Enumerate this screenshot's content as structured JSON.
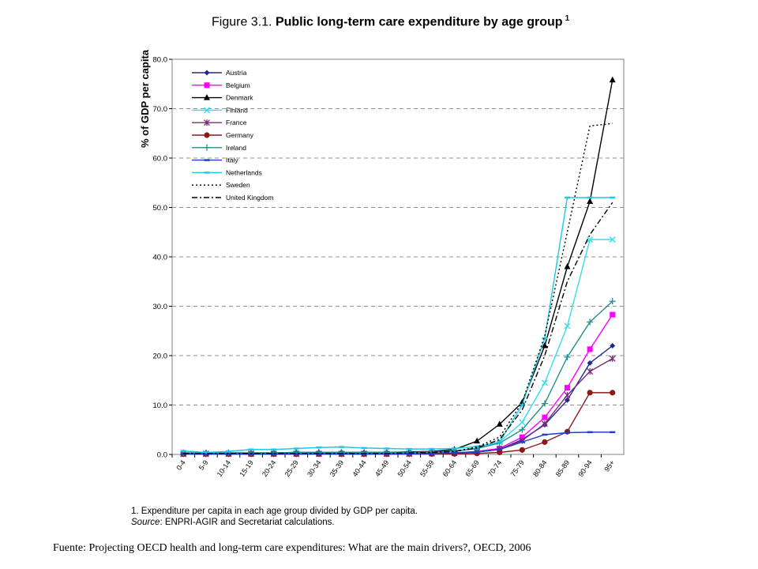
{
  "figure": {
    "number": "Figure 3.1.",
    "title": "Public long-term care expenditure by age group",
    "superscript": "1"
  },
  "footnote": {
    "line1": "1. Expenditure per capita in each age group divided by GDP per capita.",
    "source_label": "Source",
    "source_text": ": ENPRI-AGIR and Secretariat calculations."
  },
  "fuente": "Fuente: Projecting OECD health and long-term care expenditures: What are the main drivers?, OECD, 2006",
  "chart_data": {
    "type": "line",
    "title": "Public long-term care expenditure by age group",
    "xlabel": "",
    "ylabel": "% of GDP per capita",
    "ylim": [
      0,
      80
    ],
    "yticks": [
      "0.0",
      "10.0",
      "20.0",
      "30.0",
      "40.0",
      "50.0",
      "60.0",
      "70.0",
      "80.0"
    ],
    "grid": "horizontal dashed",
    "legend_position": "top-left",
    "categories": [
      "0-4",
      "5-9",
      "10-14",
      "15-19",
      "20-24",
      "25-29",
      "30-34",
      "35-39",
      "40-44",
      "45-49",
      "50-54",
      "55-59",
      "60-64",
      "65-69",
      "70-74",
      "75-79",
      "80-84",
      "85-89",
      "90-94",
      "95+"
    ],
    "series": [
      {
        "name": "Austria",
        "color": "#1f2a8c",
        "marker": "diamond",
        "dash": "",
        "values": [
          0.2,
          0.2,
          0.2,
          0.2,
          0.2,
          0.2,
          0.2,
          0.2,
          0.2,
          0.2,
          0.2,
          0.2,
          0.3,
          0.5,
          1.0,
          3.0,
          6.0,
          11.0,
          18.5,
          22.0
        ]
      },
      {
        "name": "Belgium",
        "color": "#ff00ff",
        "marker": "square",
        "dash": "",
        "values": [
          0.1,
          0.1,
          0.1,
          0.1,
          0.1,
          0.1,
          0.1,
          0.1,
          0.1,
          0.1,
          0.2,
          0.2,
          0.3,
          0.6,
          1.2,
          3.5,
          7.5,
          13.5,
          21.3,
          28.3
        ]
      },
      {
        "name": "Denmark",
        "color": "#000000",
        "marker": "triangle",
        "dash": "",
        "values": [
          0.3,
          0.3,
          0.3,
          0.3,
          0.3,
          0.4,
          0.4,
          0.4,
          0.4,
          0.4,
          0.5,
          0.6,
          1.0,
          2.7,
          6.1,
          10.5,
          22.0,
          38.0,
          51.2,
          75.8
        ]
      },
      {
        "name": "Finland",
        "color": "#33ddee",
        "marker": "x",
        "dash": "",
        "values": [
          0.2,
          0.2,
          0.2,
          0.2,
          0.2,
          0.2,
          0.2,
          0.2,
          0.2,
          0.2,
          0.3,
          0.4,
          0.6,
          1.2,
          2.5,
          6.5,
          14.5,
          26.0,
          43.5,
          43.5
        ]
      },
      {
        "name": "France",
        "color": "#7a2a7a",
        "marker": "star",
        "dash": "",
        "values": [
          0.1,
          0.1,
          0.1,
          0.1,
          0.1,
          0.1,
          0.1,
          0.1,
          0.1,
          0.1,
          0.1,
          0.2,
          0.3,
          0.5,
          1.0,
          2.8,
          6.2,
          12.0,
          16.8,
          19.4
        ]
      },
      {
        "name": "Germany",
        "color": "#8b1a1a",
        "marker": "circle",
        "dash": "",
        "values": [
          0.1,
          0.1,
          0.1,
          0.1,
          0.1,
          0.1,
          0.1,
          0.1,
          0.1,
          0.1,
          0.1,
          0.1,
          0.1,
          0.2,
          0.4,
          0.9,
          2.5,
          4.6,
          12.5,
          12.5
        ]
      },
      {
        "name": "Ireland",
        "color": "#1f8f8f",
        "marker": "plus",
        "dash": "",
        "values": [
          0.3,
          0.3,
          0.3,
          0.3,
          0.3,
          0.4,
          0.4,
          0.4,
          0.4,
          0.4,
          0.4,
          0.5,
          0.7,
          1.2,
          2.3,
          5.0,
          10.3,
          19.7,
          26.8,
          31.0
        ]
      },
      {
        "name": "Italy",
        "color": "#1e3cd0",
        "marker": "dash",
        "dash": "",
        "values": [
          0.1,
          0.1,
          0.1,
          0.1,
          0.1,
          0.1,
          0.1,
          0.1,
          0.1,
          0.1,
          0.1,
          0.2,
          0.3,
          0.5,
          1.0,
          2.5,
          4.0,
          4.4,
          4.5,
          4.5
        ]
      },
      {
        "name": "Netherlands",
        "color": "#1ec8e8",
        "marker": "dash",
        "dash": "",
        "values": [
          0.7,
          0.4,
          0.6,
          1.0,
          1.0,
          1.2,
          1.4,
          1.5,
          1.3,
          1.2,
          1.1,
          1.1,
          1.2,
          1.6,
          2.5,
          10.0,
          23.5,
          52.0,
          52.0,
          52.0
        ]
      },
      {
        "name": "Sweden",
        "color": "#000000",
        "marker": "none",
        "dash": "2,3",
        "values": [
          0.2,
          0.2,
          0.2,
          0.2,
          0.2,
          0.2,
          0.2,
          0.2,
          0.2,
          0.2,
          0.3,
          0.4,
          0.6,
          1.5,
          3.5,
          10.5,
          24.0,
          45.0,
          66.5,
          67.0
        ]
      },
      {
        "name": "United Kingdom",
        "color": "#000000",
        "marker": "none",
        "dash": "7,3,2,3",
        "values": [
          0.2,
          0.2,
          0.2,
          0.2,
          0.2,
          0.2,
          0.2,
          0.2,
          0.2,
          0.2,
          0.3,
          0.4,
          0.6,
          1.3,
          3.0,
          9.0,
          20.0,
          35.0,
          44.5,
          51.0
        ]
      }
    ]
  }
}
